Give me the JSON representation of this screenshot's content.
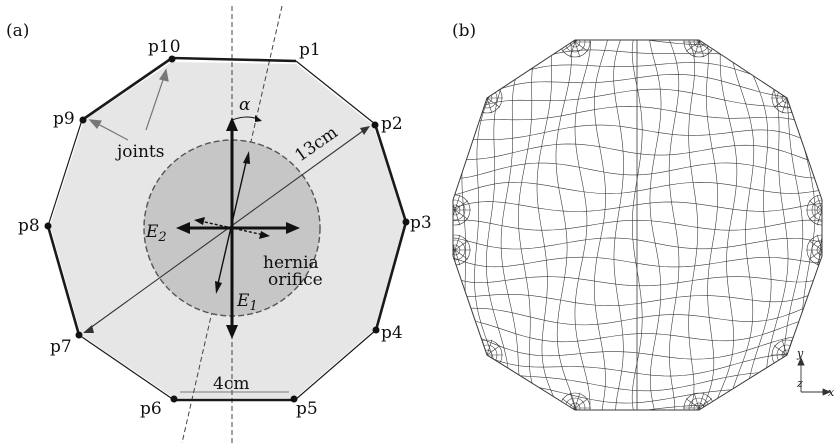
{
  "panels": {
    "a_label": "(a)",
    "b_label": "(b)"
  },
  "points": [
    "p1",
    "p2",
    "p3",
    "p4",
    "p5",
    "p6",
    "p7",
    "p8",
    "p9",
    "p10"
  ],
  "annotations": {
    "joints": "joints",
    "alpha": "α",
    "radius": "13cm",
    "edge": "4cm",
    "hernia_line1": "hernia",
    "hernia_line2": "orifice",
    "e1_main": "E",
    "e1_sub": "1",
    "e2_main": "E",
    "e2_sub": "2"
  },
  "axes": {
    "y": "y",
    "z": "z",
    "x": "x"
  },
  "colors": {
    "patch_fill": "#e6e6e6",
    "orifice_fill": "#c6c6c6",
    "outline": "#1a1a1a",
    "mesh": "#3a3a3a"
  }
}
